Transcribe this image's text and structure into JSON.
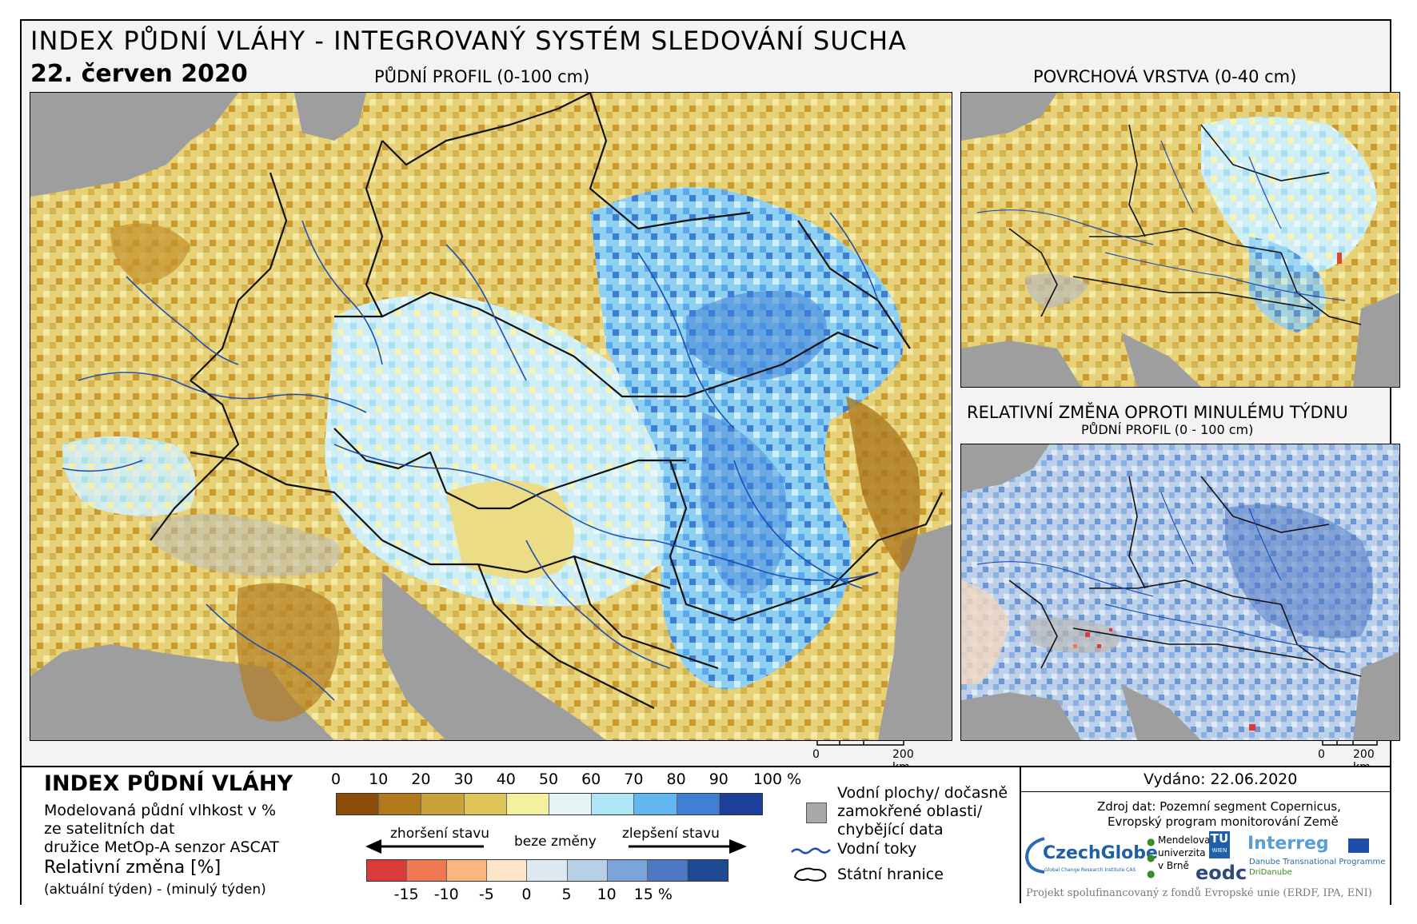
{
  "header": {
    "title": "INDEX PŮDNÍ VLÁHY - INTEGROVANÝ SYSTÉM SLEDOVÁNÍ SUCHA",
    "date": "22. červen 2020"
  },
  "panels": {
    "main_title": "PŮDNÍ PROFIL (0-100 cm)",
    "surface_title": "POVRCHOVÁ VRSTVA (0-40 cm)",
    "change_title": "RELATIVNÍ ZMĚNA OPROTI MINULÉMU TÝDNU",
    "change_subtitle": "PŮDNÍ PROFIL (0 - 100 cm)"
  },
  "scalebars": {
    "main_zero": "0",
    "main_end": "200 km",
    "small_zero": "0",
    "small_end": "200 km"
  },
  "legend": {
    "title": "INDEX PŮDNÍ VLÁHY",
    "desc_lines": [
      "Modelovaná půdní vlhkost v %",
      "ze satelitních dat",
      "družice MetOp-A senzor ASCAT"
    ],
    "rel_title": "Relativní změna [%]",
    "rel_desc": "(aktuální týden) - (minulý týden)",
    "index_ticks": [
      "0",
      "10",
      "20",
      "30",
      "40",
      "50",
      "60",
      "70",
      "80",
      "90",
      "100 %"
    ],
    "index_colors": [
      "#8b4c09",
      "#b07a1c",
      "#c9a23a",
      "#ddc559",
      "#f5f0a0",
      "#e3f5f4",
      "#aee6f5",
      "#63b7f0",
      "#3f7fd6",
      "#1d3f9a"
    ],
    "change_colors": [
      "#d93b3b",
      "#f07850",
      "#fbb57e",
      "#fde5c8",
      "#dde8f2",
      "#b8cfe8",
      "#7ba4db",
      "#4f78c4",
      "#1e4a93"
    ],
    "change_ticks": [
      "-15",
      "-10",
      "-5",
      "0",
      "5",
      "10",
      "15 %"
    ],
    "arrow_worse": "zhoršení stavu",
    "arrow_none": "beze změny",
    "arrow_better": "zlepšení stavu"
  },
  "symbols": {
    "water_lines": [
      "Vodní plochy/ dočasně",
      "zamokřené oblasti/",
      "chybějící data"
    ],
    "rivers": "Vodní toky",
    "borders": "Státní hranice"
  },
  "issued": "Vydáno: 22.06.2020",
  "source_lines": [
    "Zdroj dat: Pozemní segment Copernicus,",
    "Evropský program monitorování Země"
  ],
  "logos": {
    "czechglobe": "CzechGlobe",
    "czechglobe_sub": "Global Change Research Institute CAS",
    "mendel": [
      "Mendelova",
      "univerzita",
      "v Brně"
    ],
    "tuwien_top": "TU",
    "tuwien_bottom": "WIEN",
    "eodc": "eodc",
    "interreg": "Interreg",
    "interreg_sub": [
      "Danube Transnational Programme",
      "DriDanube"
    ]
  },
  "footer": "Projekt spolufinancovaný z fondů Evropské unie (ERDF, IPA, ENI)"
}
